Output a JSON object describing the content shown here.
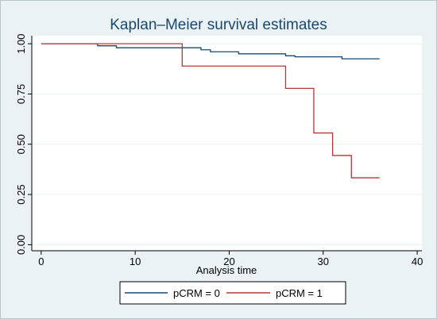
{
  "chart_data": {
    "type": "line",
    "title": "Kaplan–Meier survival estimates",
    "xlabel": "Analysis time",
    "ylabel": "",
    "xlim": [
      -1,
      40.5
    ],
    "ylim": [
      -0.03,
      1.04
    ],
    "x_ticks": [
      0,
      10,
      20,
      30,
      40
    ],
    "y_ticks": [
      0.0,
      0.25,
      0.5,
      0.75,
      1.0
    ],
    "x_tick_labels": [
      "0",
      "10",
      "20",
      "30",
      "40"
    ],
    "y_tick_labels": [
      "0.00",
      "0.25",
      "0.50",
      "0.75",
      "1.00"
    ],
    "grid": "horizontal",
    "step": true,
    "legend_position": "bottom",
    "series": [
      {
        "name": "pCRM = 0",
        "color": "#1a476f",
        "x": [
          0,
          6,
          8,
          17,
          18,
          21,
          26,
          27,
          32,
          36
        ],
        "y": [
          1.0,
          0.99,
          0.98,
          0.97,
          0.96,
          0.95,
          0.94,
          0.935,
          0.925,
          0.925
        ]
      },
      {
        "name": "pCRM = 1",
        "color": "#b5373a",
        "x": [
          0,
          15,
          26,
          29,
          31,
          33,
          36
        ],
        "y": [
          1.0,
          0.889,
          0.778,
          0.556,
          0.444,
          0.333,
          0.333
        ]
      }
    ]
  }
}
